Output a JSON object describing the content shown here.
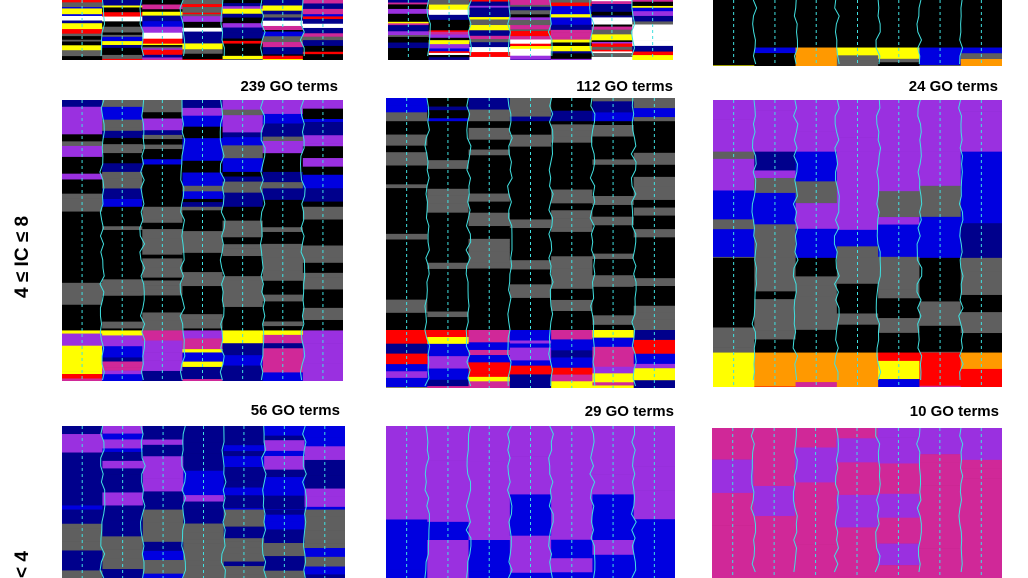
{
  "chart_data": {
    "type": "heatmap",
    "description_free": true,
    "colors": {
      "black": "#000000",
      "gray": "#5f5f5f",
      "navy": "#00008c",
      "blue": "#0000e0",
      "purple": "#9a30e0",
      "magenta": "#d02898",
      "red": "#ff0000",
      "orange": "#ff9900",
      "yellow": "#ffff00",
      "white": "#ffffff",
      "cyan": "#40e0e0"
    },
    "row_labels": [
      "4 ≤ IC ≤ 8",
      "< 4"
    ],
    "panels": [
      {
        "id": "top-1",
        "title": "",
        "columns": 7,
        "pattern": "mixed-bright"
      },
      {
        "id": "top-2",
        "title": "",
        "columns": 7,
        "pattern": "mixed-bright"
      },
      {
        "id": "top-3",
        "title": "",
        "columns": 7,
        "pattern": "black-bottom-bright"
      },
      {
        "id": "mid-1",
        "title": "239 GO terms",
        "columns": 7,
        "pattern": "gray-black-bright-bottom"
      },
      {
        "id": "mid-2",
        "title": "112 GO terms",
        "columns": 7,
        "pattern": "black-blue-bottom"
      },
      {
        "id": "mid-3",
        "title": "24 GO terms",
        "columns": 7,
        "pattern": "purple-blue-black-red"
      },
      {
        "id": "bot-1",
        "title": "56 GO terms",
        "columns": 7,
        "pattern": "blue-gray"
      },
      {
        "id": "bot-2",
        "title": "29 GO terms",
        "columns": 7,
        "pattern": "purple-blue"
      },
      {
        "id": "bot-3",
        "title": "10 GO terms",
        "columns": 7,
        "pattern": "magenta-purple"
      }
    ]
  }
}
